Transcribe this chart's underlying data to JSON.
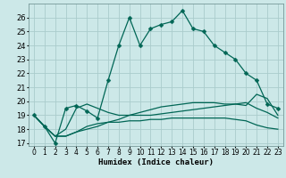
{
  "xlabel": "Humidex (Indice chaleur)",
  "background_color": "#cce8e8",
  "grid_color": "#aacccc",
  "line_color": "#006655",
  "x_ticks": [
    0,
    1,
    2,
    3,
    4,
    5,
    6,
    7,
    8,
    9,
    10,
    11,
    12,
    13,
    14,
    15,
    16,
    17,
    18,
    19,
    20,
    21,
    22,
    23
  ],
  "y_ticks": [
    17,
    18,
    19,
    20,
    21,
    22,
    23,
    24,
    25,
    26
  ],
  "ylim": [
    16.8,
    27.0
  ],
  "xlim": [
    -0.5,
    23.5
  ],
  "main_line": [
    19.0,
    18.2,
    17.0,
    19.5,
    19.7,
    19.3,
    18.8,
    21.5,
    24.0,
    26.0,
    24.0,
    25.2,
    25.5,
    25.7,
    26.5,
    25.2,
    25.0,
    24.0,
    23.5,
    23.0,
    22.0,
    21.5,
    19.8,
    19.5
  ],
  "line_smooth1": [
    19.0,
    18.2,
    17.5,
    18.0,
    19.5,
    19.8,
    19.5,
    19.2,
    19.0,
    19.0,
    19.0,
    19.0,
    19.1,
    19.2,
    19.3,
    19.4,
    19.5,
    19.6,
    19.7,
    19.8,
    19.9,
    19.5,
    19.2,
    18.8
  ],
  "line_smooth2": [
    19.0,
    18.2,
    17.5,
    17.5,
    17.8,
    18.2,
    18.4,
    18.5,
    18.5,
    18.6,
    18.6,
    18.7,
    18.7,
    18.8,
    18.8,
    18.8,
    18.8,
    18.8,
    18.8,
    18.7,
    18.6,
    18.3,
    18.1,
    18.0
  ],
  "line_smooth3": [
    19.0,
    18.2,
    17.5,
    17.5,
    17.8,
    18.0,
    18.2,
    18.5,
    18.7,
    19.0,
    19.2,
    19.4,
    19.6,
    19.7,
    19.8,
    19.9,
    19.9,
    19.9,
    19.8,
    19.8,
    19.7,
    20.5,
    20.2,
    19.0
  ],
  "marker_size": 2.5,
  "line_width": 0.9,
  "tick_fontsize": 5.5,
  "xlabel_fontsize": 6.5
}
